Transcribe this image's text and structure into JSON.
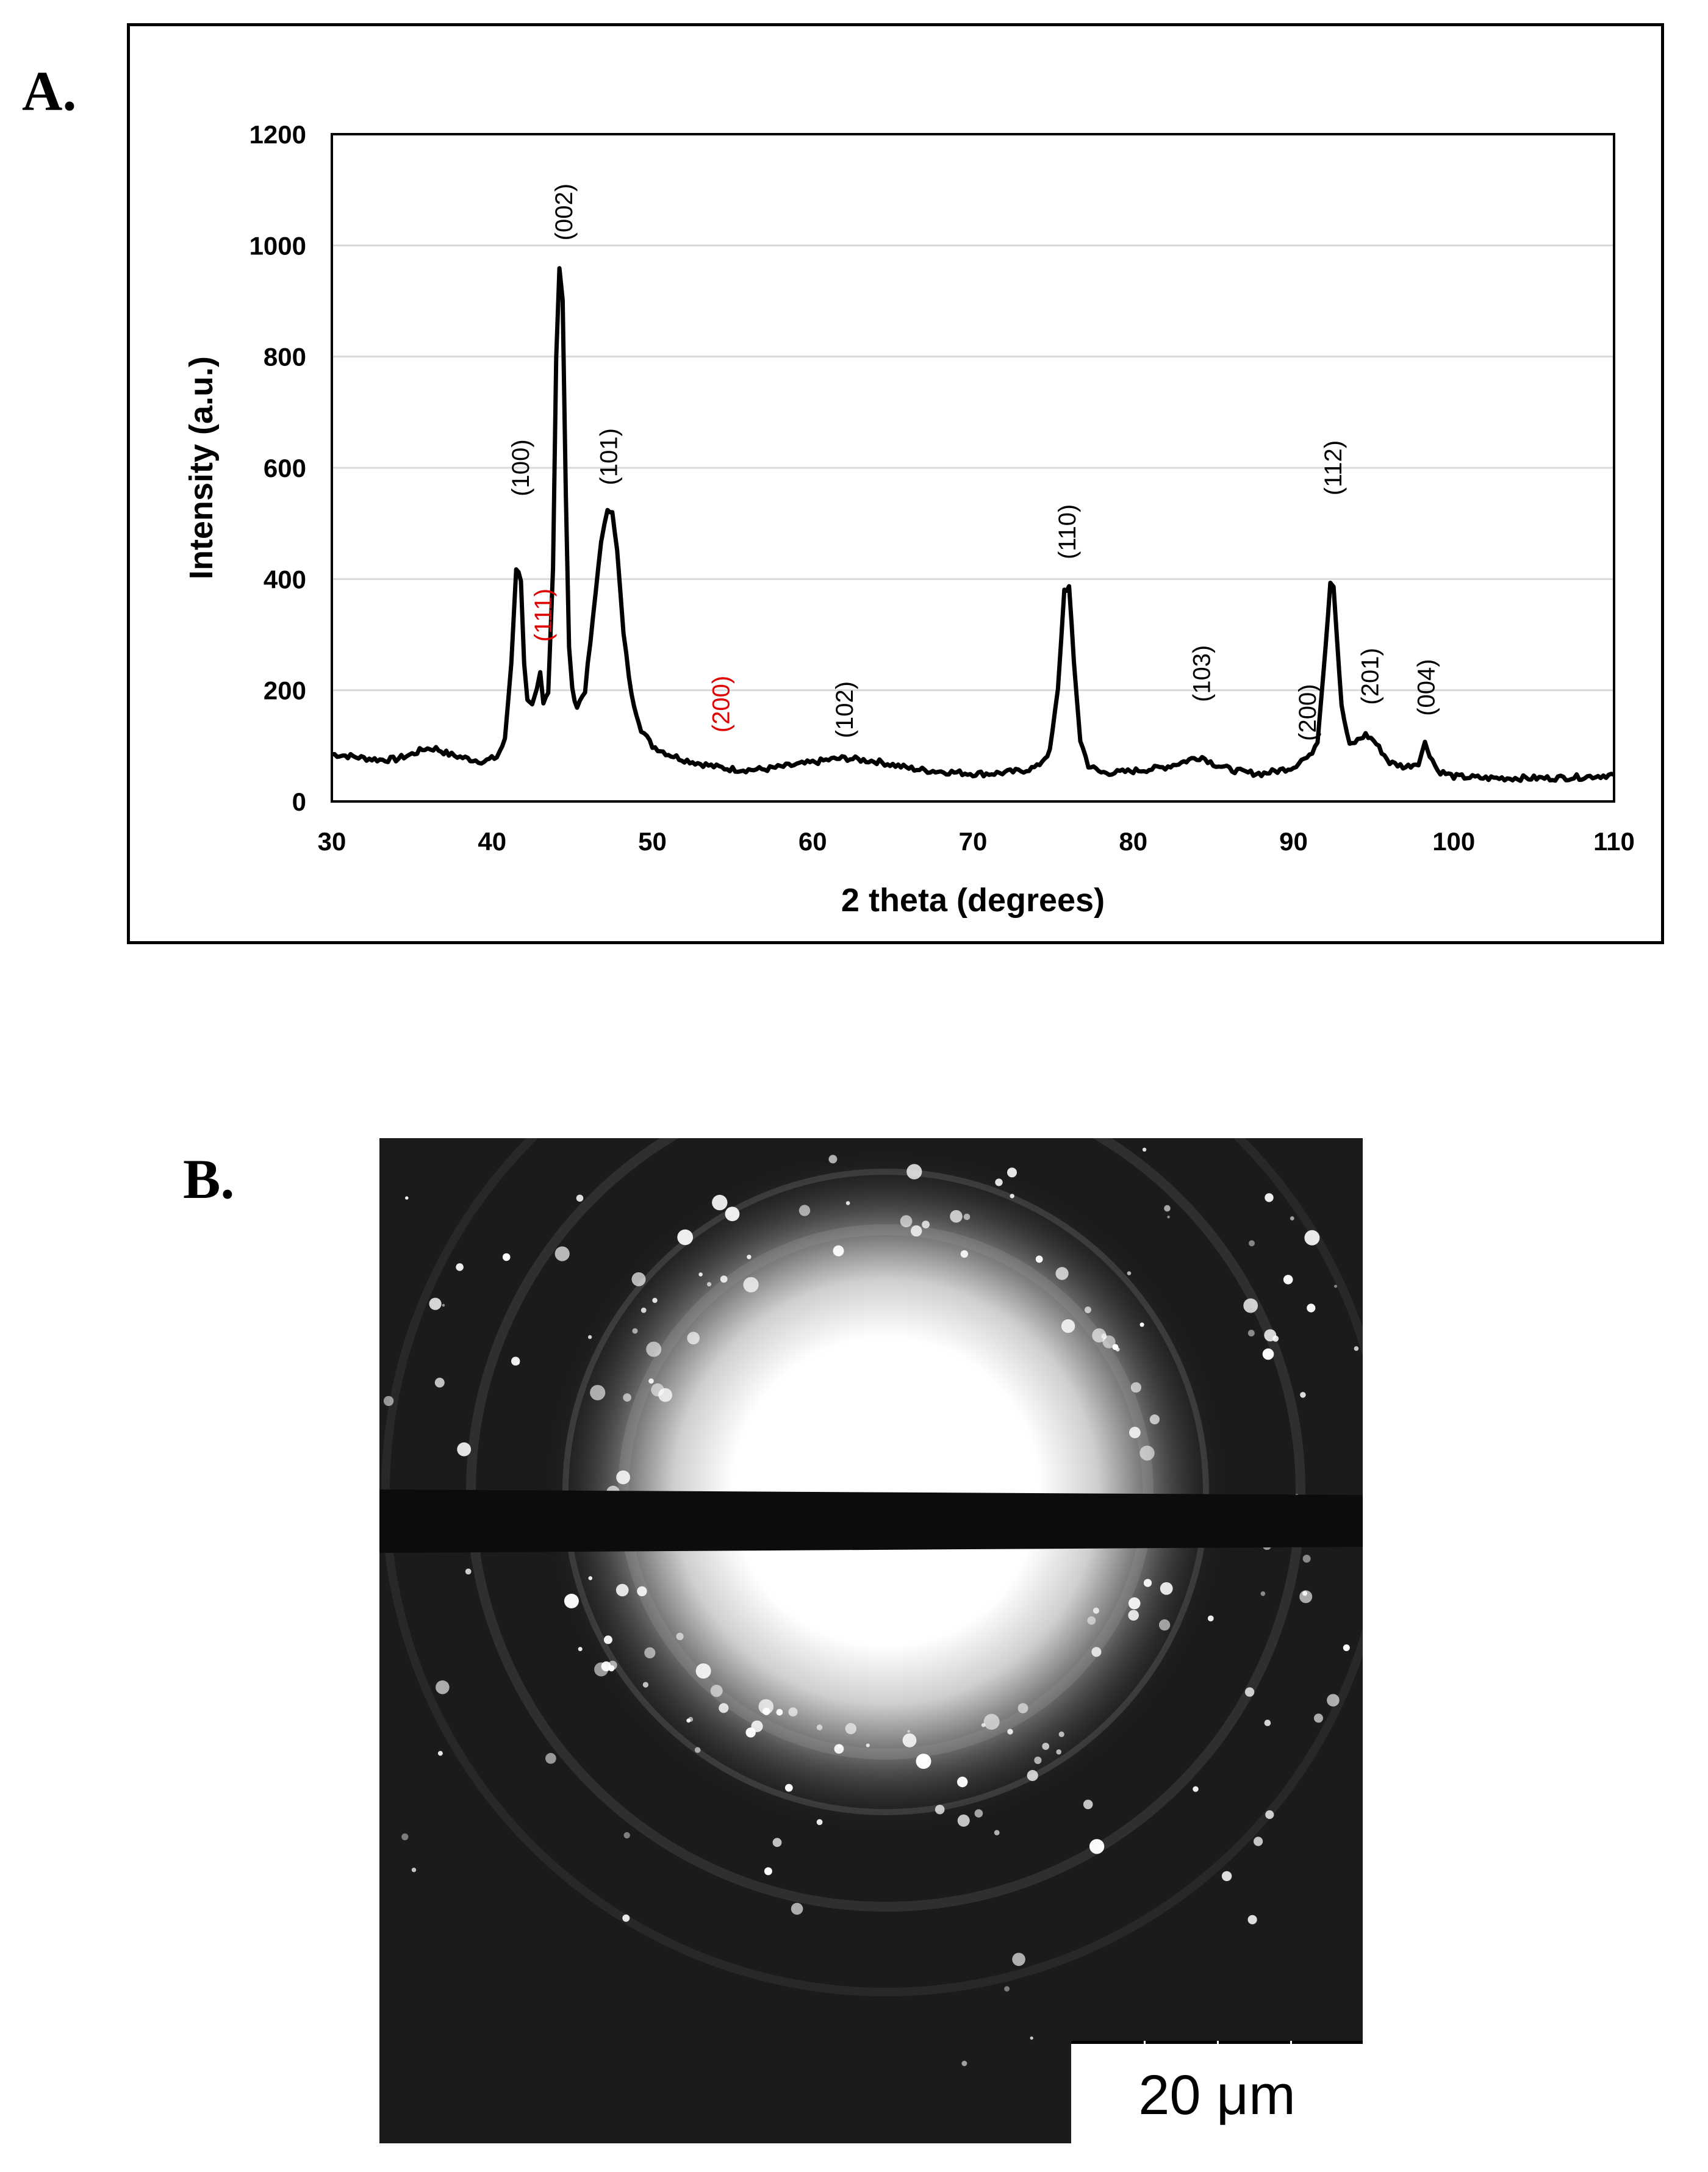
{
  "panel_a_label": "A.",
  "panel_b_label": "B.",
  "chart_data": {
    "type": "line",
    "title": "",
    "xlabel": "2 theta (degrees)",
    "ylabel": "Intensity (a.u.)",
    "xlim": [
      30,
      110
    ],
    "ylim": [
      0,
      1200
    ],
    "xticks": [
      30,
      40,
      50,
      60,
      70,
      80,
      90,
      100,
      110
    ],
    "yticks": [
      0,
      200,
      400,
      600,
      800,
      1000,
      1200
    ],
    "gridlines": "horizontal",
    "line_color": "#000000",
    "series": [
      {
        "name": "XRD pattern",
        "x": [
          30,
          31,
          32,
          33,
          34,
          35,
          35.8,
          36.5,
          37.3,
          38,
          38.8,
          39.5,
          40.3,
          40.8,
          41.2,
          41.5,
          41.8,
          42.0,
          42.2,
          42.5,
          42.8,
          43.0,
          43.2,
          43.5,
          43.8,
          44.0,
          44.2,
          44.4,
          44.6,
          44.8,
          45.0,
          45.3,
          45.8,
          46.3,
          46.8,
          47.2,
          47.5,
          47.8,
          48.2,
          48.7,
          49.3,
          50,
          51,
          52,
          53,
          54,
          55,
          56,
          57,
          58,
          59,
          60,
          61,
          62,
          63,
          64,
          65,
          66,
          67,
          68,
          69,
          70,
          71,
          72,
          73,
          74,
          74.8,
          75.3,
          75.7,
          76.0,
          76.3,
          76.7,
          77.2,
          78,
          79,
          80,
          81,
          82,
          83,
          83.8,
          84.3,
          85,
          86,
          87,
          88,
          89,
          90,
          90.5,
          91,
          91.5,
          92,
          92.3,
          92.5,
          92.7,
          93.0,
          93.5,
          94.0,
          94.5,
          95.0,
          95.5,
          96,
          97,
          97.8,
          98.2,
          98.5,
          99,
          100,
          102,
          104,
          106,
          108,
          110
        ],
        "y": [
          85,
          82,
          78,
          75,
          76,
          85,
          95,
          95,
          85,
          80,
          75,
          72,
          80,
          110,
          250,
          420,
          400,
          250,
          180,
          170,
          200,
          230,
          175,
          200,
          420,
          800,
          960,
          900,
          550,
          280,
          200,
          170,
          200,
          330,
          470,
          520,
          525,
          450,
          300,
          190,
          130,
          100,
          85,
          75,
          68,
          62,
          58,
          57,
          58,
          62,
          66,
          70,
          75,
          78,
          75,
          72,
          66,
          60,
          56,
          54,
          52,
          50,
          50,
          52,
          55,
          62,
          90,
          200,
          380,
          385,
          250,
          110,
          65,
          52,
          52,
          55,
          58,
          62,
          70,
          78,
          80,
          68,
          58,
          52,
          50,
          55,
          62,
          75,
          80,
          110,
          280,
          395,
          390,
          300,
          170,
          100,
          110,
          120,
          110,
          90,
          70,
          62,
          70,
          105,
          85,
          55,
          45,
          42,
          42,
          42,
          44,
          48
        ]
      }
    ],
    "peak_labels": [
      {
        "text": "(100)",
        "x": 41.8,
        "y": 600,
        "color": "#000000"
      },
      {
        "text": "(111)",
        "x": 43.2,
        "y": 335,
        "color": "#e00000"
      },
      {
        "text": "(002)",
        "x": 44.5,
        "y": 1060,
        "color": "#000000"
      },
      {
        "text": "(101)",
        "x": 47.3,
        "y": 620,
        "color": "#000000"
      },
      {
        "text": "(200)",
        "x": 54.3,
        "y": 175,
        "color": "#e00000"
      },
      {
        "text": "(102)",
        "x": 62.0,
        "y": 165,
        "color": "#000000"
      },
      {
        "text": "(110)",
        "x": 75.9,
        "y": 485,
        "color": "#000000"
      },
      {
        "text": "(103)",
        "x": 84.3,
        "y": 230,
        "color": "#000000"
      },
      {
        "text": "(200)",
        "x": 90.9,
        "y": 160,
        "color": "#000000"
      },
      {
        "text": "(112)",
        "x": 92.5,
        "y": 600,
        "color": "#000000"
      },
      {
        "text": "(201)",
        "x": 94.8,
        "y": 225,
        "color": "#000000"
      },
      {
        "text": "(004)",
        "x": 98.3,
        "y": 205,
        "color": "#000000"
      }
    ]
  },
  "diffraction_image": {
    "description_label": "selected area electron diffraction pattern",
    "scale_bar_label": "20 μm"
  }
}
